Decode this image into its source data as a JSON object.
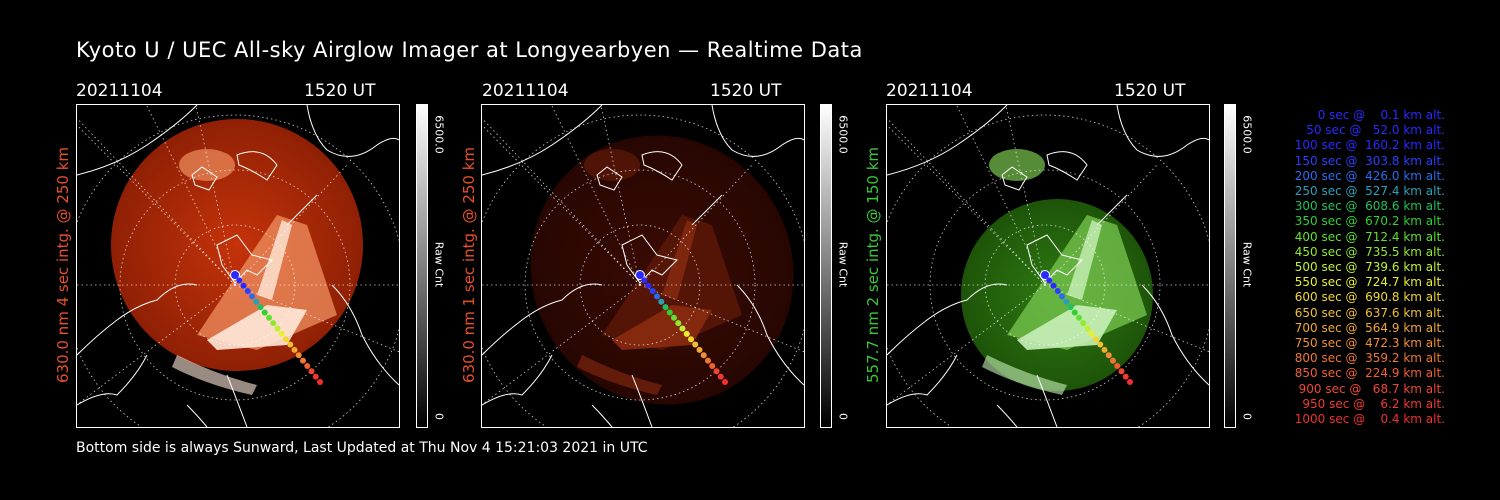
{
  "title": "Kyoto U / UEC All-sky Airglow Imager at Longyearbyen — Realtime Data",
  "panels": [
    {
      "date": "20211104",
      "time": "1520 UT",
      "label": "630.0 nm  4 sec intg. @ 250 km",
      "label_color": "#e8502a",
      "cbar_max": "6500.0",
      "cbar_min": "0",
      "cbar_title": "Raw Cnt",
      "tint": "red"
    },
    {
      "date": "20211104",
      "time": "1520 UT",
      "label": "630.0 nm  1 sec intg. @ 250 km",
      "label_color": "#e8502a",
      "cbar_max": "6500.0",
      "cbar_min": "0",
      "cbar_title": "Raw Cnt",
      "tint": "darkred"
    },
    {
      "date": "20211104",
      "time": "1520 UT",
      "label": "557.7 nm  2 sec intg. @ 150 km",
      "label_color": "#38c838",
      "cbar_max": "6500.0",
      "cbar_min": "0",
      "cbar_title": "Raw Cnt",
      "tint": "green"
    }
  ],
  "legend": [
    {
      "text": "0 sec @    0.1 km alt.",
      "color": "#2a2aff"
    },
    {
      "text": "50 sec @   52.0 km alt.",
      "color": "#2a2aff"
    },
    {
      "text": "100 sec @  160.2 km alt.",
      "color": "#2a2aff"
    },
    {
      "text": "150 sec @  303.8 km alt.",
      "color": "#2a40ff"
    },
    {
      "text": "200 sec @  426.0 km alt.",
      "color": "#2a6cf0"
    },
    {
      "text": "250 sec @  527.4 km alt.",
      "color": "#2aa0b8"
    },
    {
      "text": "300 sec @  608.6 km alt.",
      "color": "#20c060"
    },
    {
      "text": "350 sec @  670.2 km alt.",
      "color": "#30d030"
    },
    {
      "text": "400 sec @  712.4 km alt.",
      "color": "#60e030"
    },
    {
      "text": "450 sec @  735.5 km alt.",
      "color": "#90e830"
    },
    {
      "text": "500 sec @  739.6 km alt.",
      "color": "#c0f030"
    },
    {
      "text": "550 sec @  724.7 km alt.",
      "color": "#e8f030"
    },
    {
      "text": "600 sec @  690.8 km alt.",
      "color": "#f0d830"
    },
    {
      "text": "650 sec @  637.6 km alt.",
      "color": "#f0c030"
    },
    {
      "text": "700 sec @  564.9 km alt.",
      "color": "#f0a830"
    },
    {
      "text": "750 sec @  472.3 km alt.",
      "color": "#f09030"
    },
    {
      "text": "800 sec @  359.2 km alt.",
      "color": "#f07830"
    },
    {
      "text": "850 sec @  224.9 km alt.",
      "color": "#f06030"
    },
    {
      "text": "900 sec @   68.7 km alt.",
      "color": "#f04830"
    },
    {
      "text": "950 sec @    6.2 km alt.",
      "color": "#f03a30"
    },
    {
      "text": "1000 sec @    0.4 km alt.",
      "color": "#f03030"
    }
  ],
  "footer": "Bottom side is always Sunward, Last Updated at Thu Nov  4 15:21:03 2021 in UTC"
}
